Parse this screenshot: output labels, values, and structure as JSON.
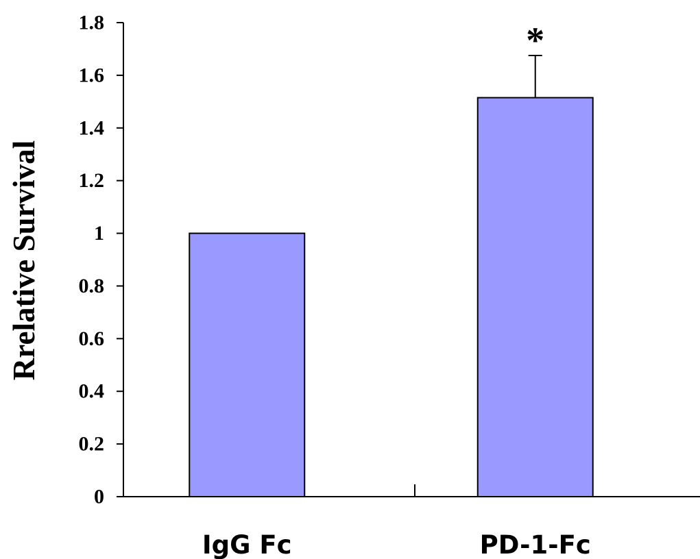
{
  "chart_data": {
    "type": "bar",
    "categories": [
      "IgG Fc",
      "PD-1-Fc"
    ],
    "values": [
      1.0,
      1.515
    ],
    "error_bars": [
      null,
      0.16
    ],
    "annotations": [
      null,
      "*"
    ],
    "title": "",
    "xlabel": "",
    "ylabel": "Rrelative Survival",
    "ylim": [
      0,
      1.8
    ],
    "yticks": [
      0,
      0.2,
      0.4,
      0.6,
      0.8,
      1,
      1.2,
      1.4,
      1.6,
      1.8
    ],
    "ytick_labels": [
      "0",
      "0.2",
      "0.4",
      "0.6",
      "0.8",
      "1",
      "1.2",
      "1.4",
      "1.6",
      "1.8"
    ],
    "grid": false,
    "legend": "none",
    "bar_color": "#9999ff",
    "edge_color": "#000000"
  }
}
